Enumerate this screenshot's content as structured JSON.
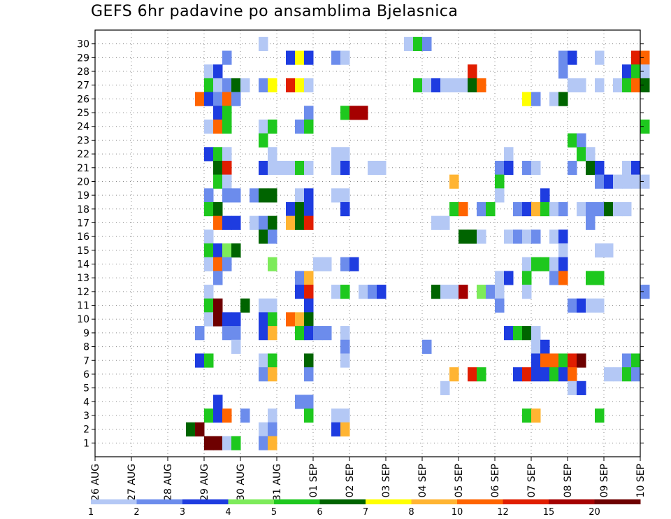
{
  "chart_data": {
    "type": "heatmap",
    "title": "GEFS 6hr padavine po ansamblima Bjelasnica",
    "xlabel": "",
    "ylabel": "",
    "x_tick_labels": [
      "26 AUG",
      "27 AUG",
      "28 AUG",
      "29 AUG",
      "30 AUG",
      "31 AUG",
      "01 SEP",
      "02 SEP",
      "03 SEP",
      "04 SEP",
      "05 SEP",
      "06 SEP",
      "07 SEP",
      "08 SEP",
      "09 SEP",
      "10 SEP"
    ],
    "y_tick_labels": [
      "1",
      "2",
      "3",
      "4",
      "5",
      "6",
      "7",
      "8",
      "9",
      "10",
      "11",
      "12",
      "13",
      "14",
      "15",
      "16",
      "17",
      "18",
      "19",
      "20",
      "21",
      "22",
      "23",
      "24",
      "25",
      "26",
      "27",
      "28",
      "29",
      "30"
    ],
    "time_steps_per_day": 4,
    "members": 30,
    "grid": true,
    "legend_placement": "bottom",
    "legend": {
      "labels": [
        "1",
        "2",
        "3",
        "4",
        "5",
        "6",
        "7",
        "8",
        "10",
        "12",
        "15",
        "20"
      ],
      "colors": [
        "#b4c8f5",
        "#6c8cec",
        "#1e3ce0",
        "#7deb5a",
        "#1ec81e",
        "#006400",
        "#ffff00",
        "#ffb432",
        "#ff6400",
        "#e11e00",
        "#a50000",
        "#6e0000"
      ]
    },
    "cells": [
      [
        30,
        18,
        1
      ],
      [
        30,
        34,
        1
      ],
      [
        30,
        35,
        5
      ],
      [
        30,
        36,
        2
      ],
      [
        29,
        14,
        2
      ],
      [
        29,
        21,
        3
      ],
      [
        29,
        22,
        7
      ],
      [
        29,
        23,
        3
      ],
      [
        29,
        26,
        2
      ],
      [
        29,
        27,
        1
      ],
      [
        29,
        51,
        2
      ],
      [
        29,
        52,
        3
      ],
      [
        29,
        55,
        1
      ],
      [
        29,
        59,
        12
      ],
      [
        29,
        60,
        10
      ],
      [
        28,
        12,
        1
      ],
      [
        28,
        13,
        3
      ],
      [
        28,
        41,
        12
      ],
      [
        28,
        51,
        2
      ],
      [
        28,
        58,
        3
      ],
      [
        28,
        59,
        5
      ],
      [
        28,
        60,
        1
      ],
      [
        27,
        12,
        5
      ],
      [
        27,
        13,
        1
      ],
      [
        27,
        14,
        2
      ],
      [
        27,
        15,
        6
      ],
      [
        27,
        16,
        1
      ],
      [
        27,
        18,
        2
      ],
      [
        27,
        19,
        7
      ],
      [
        27,
        21,
        12
      ],
      [
        27,
        22,
        7
      ],
      [
        27,
        23,
        1
      ],
      [
        27,
        35,
        5
      ],
      [
        27,
        36,
        1
      ],
      [
        27,
        37,
        3
      ],
      [
        27,
        38,
        1
      ],
      [
        27,
        39,
        1
      ],
      [
        27,
        40,
        1
      ],
      [
        27,
        41,
        6
      ],
      [
        27,
        42,
        10
      ],
      [
        27,
        52,
        1
      ],
      [
        27,
        53,
        1
      ],
      [
        27,
        55,
        1
      ],
      [
        27,
        57,
        1
      ],
      [
        27,
        58,
        5
      ],
      [
        27,
        59,
        10
      ],
      [
        27,
        60,
        6
      ],
      [
        26,
        11,
        10
      ],
      [
        26,
        12,
        3
      ],
      [
        26,
        13,
        2
      ],
      [
        26,
        14,
        10
      ],
      [
        26,
        15,
        2
      ],
      [
        26,
        47,
        7
      ],
      [
        26,
        48,
        2
      ],
      [
        26,
        50,
        1
      ],
      [
        26,
        51,
        6
      ],
      [
        25,
        13,
        3
      ],
      [
        25,
        14,
        5
      ],
      [
        25,
        23,
        2
      ],
      [
        25,
        27,
        5
      ],
      [
        25,
        28,
        15
      ],
      [
        25,
        29,
        15
      ],
      [
        24,
        12,
        1
      ],
      [
        24,
        13,
        10
      ],
      [
        24,
        14,
        5
      ],
      [
        24,
        18,
        1
      ],
      [
        24,
        19,
        5
      ],
      [
        24,
        22,
        2
      ],
      [
        24,
        23,
        5
      ],
      [
        24,
        60,
        5
      ],
      [
        23,
        18,
        5
      ],
      [
        23,
        52,
        5
      ],
      [
        23,
        53,
        2
      ],
      [
        22,
        12,
        3
      ],
      [
        22,
        13,
        5
      ],
      [
        22,
        14,
        1
      ],
      [
        22,
        19,
        1
      ],
      [
        22,
        26,
        1
      ],
      [
        22,
        27,
        1
      ],
      [
        22,
        45,
        1
      ],
      [
        22,
        53,
        5
      ],
      [
        22,
        54,
        1
      ],
      [
        21,
        13,
        6
      ],
      [
        21,
        14,
        12
      ],
      [
        21,
        18,
        3
      ],
      [
        21,
        19,
        1
      ],
      [
        21,
        20,
        1
      ],
      [
        21,
        21,
        1
      ],
      [
        21,
        22,
        5
      ],
      [
        21,
        23,
        1
      ],
      [
        21,
        26,
        1
      ],
      [
        21,
        27,
        3
      ],
      [
        21,
        30,
        1
      ],
      [
        21,
        31,
        1
      ],
      [
        21,
        44,
        2
      ],
      [
        21,
        45,
        3
      ],
      [
        21,
        47,
        2
      ],
      [
        21,
        48,
        1
      ],
      [
        21,
        52,
        2
      ],
      [
        21,
        54,
        6
      ],
      [
        21,
        55,
        3
      ],
      [
        21,
        58,
        1
      ],
      [
        21,
        59,
        3
      ],
      [
        20,
        13,
        5
      ],
      [
        20,
        14,
        1
      ],
      [
        20,
        39,
        8
      ],
      [
        20,
        44,
        5
      ],
      [
        20,
        55,
        2
      ],
      [
        20,
        56,
        3
      ],
      [
        20,
        57,
        1
      ],
      [
        20,
        58,
        1
      ],
      [
        20,
        59,
        1
      ],
      [
        20,
        60,
        1
      ],
      [
        19,
        12,
        2
      ],
      [
        19,
        14,
        2
      ],
      [
        19,
        15,
        2
      ],
      [
        19,
        17,
        2
      ],
      [
        19,
        18,
        6
      ],
      [
        19,
        19,
        6
      ],
      [
        19,
        22,
        1
      ],
      [
        19,
        23,
        3
      ],
      [
        19,
        26,
        1
      ],
      [
        19,
        27,
        1
      ],
      [
        19,
        44,
        1
      ],
      [
        19,
        49,
        3
      ],
      [
        18,
        12,
        5
      ],
      [
        18,
        13,
        6
      ],
      [
        18,
        21,
        3
      ],
      [
        18,
        22,
        6
      ],
      [
        18,
        23,
        3
      ],
      [
        18,
        27,
        3
      ],
      [
        18,
        39,
        5
      ],
      [
        18,
        40,
        10
      ],
      [
        18,
        42,
        2
      ],
      [
        18,
        43,
        5
      ],
      [
        18,
        46,
        2
      ],
      [
        18,
        47,
        3
      ],
      [
        18,
        48,
        8
      ],
      [
        18,
        49,
        5
      ],
      [
        18,
        50,
        1
      ],
      [
        18,
        51,
        2
      ],
      [
        18,
        53,
        1
      ],
      [
        18,
        54,
        2
      ],
      [
        18,
        55,
        2
      ],
      [
        18,
        56,
        6
      ],
      [
        18,
        57,
        1
      ],
      [
        18,
        58,
        1
      ],
      [
        17,
        13,
        10
      ],
      [
        17,
        14,
        3
      ],
      [
        17,
        15,
        3
      ],
      [
        17,
        17,
        1
      ],
      [
        17,
        18,
        2
      ],
      [
        17,
        19,
        6
      ],
      [
        17,
        21,
        8
      ],
      [
        17,
        22,
        6
      ],
      [
        17,
        23,
        12
      ],
      [
        17,
        37,
        1
      ],
      [
        17,
        38,
        1
      ],
      [
        17,
        54,
        2
      ],
      [
        16,
        12,
        1
      ],
      [
        16,
        18,
        6
      ],
      [
        16,
        19,
        2
      ],
      [
        16,
        40,
        6
      ],
      [
        16,
        41,
        6
      ],
      [
        16,
        42,
        1
      ],
      [
        16,
        45,
        1
      ],
      [
        16,
        46,
        2
      ],
      [
        16,
        47,
        1
      ],
      [
        16,
        48,
        2
      ],
      [
        16,
        50,
        1
      ],
      [
        16,
        51,
        3
      ],
      [
        15,
        12,
        5
      ],
      [
        15,
        13,
        3
      ],
      [
        15,
        14,
        4
      ],
      [
        15,
        15,
        6
      ],
      [
        15,
        51,
        1
      ],
      [
        15,
        55,
        1
      ],
      [
        15,
        56,
        1
      ],
      [
        14,
        12,
        1
      ],
      [
        14,
        13,
        10
      ],
      [
        14,
        14,
        2
      ],
      [
        14,
        19,
        4
      ],
      [
        14,
        24,
        1
      ],
      [
        14,
        25,
        1
      ],
      [
        14,
        27,
        2
      ],
      [
        14,
        28,
        3
      ],
      [
        14,
        47,
        1
      ],
      [
        14,
        48,
        5
      ],
      [
        14,
        49,
        5
      ],
      [
        14,
        50,
        1
      ],
      [
        14,
        51,
        3
      ],
      [
        13,
        13,
        2
      ],
      [
        13,
        22,
        2
      ],
      [
        13,
        23,
        8
      ],
      [
        13,
        44,
        1
      ],
      [
        13,
        45,
        3
      ],
      [
        13,
        47,
        5
      ],
      [
        13,
        50,
        2
      ],
      [
        13,
        51,
        10
      ],
      [
        13,
        54,
        5
      ],
      [
        13,
        55,
        5
      ],
      [
        12,
        12,
        1
      ],
      [
        12,
        22,
        3
      ],
      [
        12,
        23,
        12
      ],
      [
        12,
        26,
        1
      ],
      [
        12,
        27,
        5
      ],
      [
        12,
        29,
        1
      ],
      [
        12,
        30,
        2
      ],
      [
        12,
        31,
        3
      ],
      [
        12,
        37,
        6
      ],
      [
        12,
        38,
        1
      ],
      [
        12,
        39,
        1
      ],
      [
        12,
        40,
        15
      ],
      [
        12,
        42,
        4
      ],
      [
        12,
        43,
        2
      ],
      [
        12,
        44,
        1
      ],
      [
        12,
        47,
        1
      ],
      [
        12,
        60,
        2
      ],
      [
        11,
        12,
        5
      ],
      [
        11,
        13,
        20
      ],
      [
        11,
        16,
        6
      ],
      [
        11,
        18,
        1
      ],
      [
        11,
        19,
        1
      ],
      [
        11,
        23,
        3
      ],
      [
        11,
        44,
        2
      ],
      [
        11,
        52,
        2
      ],
      [
        11,
        53,
        3
      ],
      [
        11,
        54,
        1
      ],
      [
        11,
        55,
        1
      ],
      [
        10,
        12,
        1
      ],
      [
        10,
        13,
        20
      ],
      [
        10,
        14,
        3
      ],
      [
        10,
        15,
        3
      ],
      [
        10,
        18,
        3
      ],
      [
        10,
        19,
        5
      ],
      [
        10,
        21,
        10
      ],
      [
        10,
        22,
        8
      ],
      [
        10,
        23,
        6
      ],
      [
        9,
        11,
        2
      ],
      [
        9,
        14,
        2
      ],
      [
        9,
        15,
        2
      ],
      [
        9,
        18,
        3
      ],
      [
        9,
        19,
        8
      ],
      [
        9,
        22,
        5
      ],
      [
        9,
        23,
        3
      ],
      [
        9,
        24,
        2
      ],
      [
        9,
        25,
        2
      ],
      [
        9,
        27,
        1
      ],
      [
        9,
        45,
        3
      ],
      [
        9,
        46,
        5
      ],
      [
        9,
        47,
        6
      ],
      [
        9,
        48,
        1
      ],
      [
        8,
        15,
        1
      ],
      [
        8,
        27,
        2
      ],
      [
        8,
        36,
        2
      ],
      [
        8,
        48,
        1
      ],
      [
        8,
        49,
        3
      ],
      [
        7,
        11,
        3
      ],
      [
        7,
        12,
        5
      ],
      [
        7,
        18,
        1
      ],
      [
        7,
        19,
        5
      ],
      [
        7,
        23,
        6
      ],
      [
        7,
        27,
        1
      ],
      [
        7,
        48,
        3
      ],
      [
        7,
        49,
        10
      ],
      [
        7,
        50,
        10
      ],
      [
        7,
        51,
        5
      ],
      [
        7,
        52,
        12
      ],
      [
        7,
        53,
        20
      ],
      [
        7,
        58,
        2
      ],
      [
        7,
        59,
        5
      ],
      [
        6,
        18,
        2
      ],
      [
        6,
        19,
        8
      ],
      [
        6,
        23,
        2
      ],
      [
        6,
        39,
        8
      ],
      [
        6,
        41,
        12
      ],
      [
        6,
        42,
        5
      ],
      [
        6,
        46,
        3
      ],
      [
        6,
        47,
        12
      ],
      [
        6,
        48,
        3
      ],
      [
        6,
        49,
        3
      ],
      [
        6,
        50,
        5
      ],
      [
        6,
        51,
        3
      ],
      [
        6,
        52,
        10
      ],
      [
        6,
        56,
        1
      ],
      [
        6,
        57,
        1
      ],
      [
        6,
        58,
        5
      ],
      [
        6,
        59,
        2
      ],
      [
        5,
        38,
        1
      ],
      [
        5,
        52,
        1
      ],
      [
        5,
        53,
        3
      ],
      [
        4,
        13,
        3
      ],
      [
        4,
        22,
        2
      ],
      [
        4,
        23,
        2
      ],
      [
        3,
        12,
        5
      ],
      [
        3,
        13,
        3
      ],
      [
        3,
        14,
        10
      ],
      [
        3,
        16,
        2
      ],
      [
        3,
        19,
        1
      ],
      [
        3,
        23,
        5
      ],
      [
        3,
        26,
        1
      ],
      [
        3,
        27,
        1
      ],
      [
        3,
        47,
        5
      ],
      [
        3,
        48,
        8
      ],
      [
        3,
        55,
        5
      ],
      [
        2,
        10,
        6
      ],
      [
        2,
        11,
        20
      ],
      [
        2,
        18,
        1
      ],
      [
        2,
        19,
        2
      ],
      [
        2,
        26,
        3
      ],
      [
        2,
        27,
        8
      ],
      [
        1,
        12,
        20
      ],
      [
        1,
        13,
        20
      ],
      [
        1,
        14,
        1
      ],
      [
        1,
        15,
        5
      ],
      [
        1,
        18,
        2
      ],
      [
        1,
        19,
        8
      ]
    ]
  }
}
